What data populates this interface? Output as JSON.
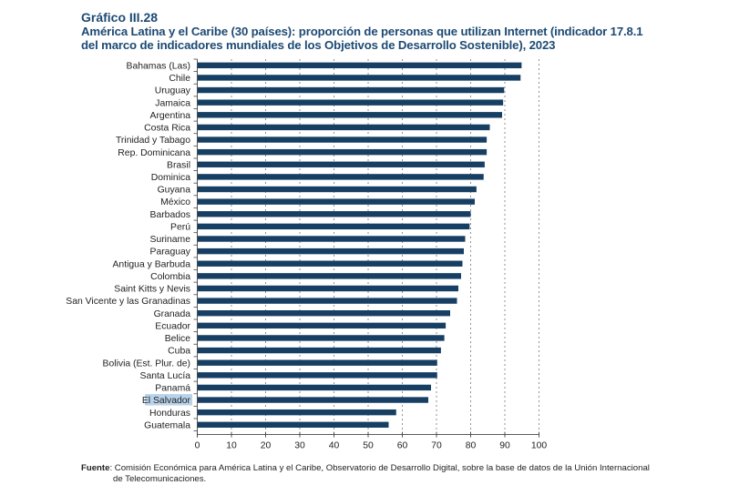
{
  "header": {
    "figure_number": "Gráfico III.28",
    "title_line1": "América Latina y el Caribe (30 países): proporción de personas que utilizan Internet (indicador 17.8.1",
    "title_line2": "del marco de indicadores mundiales de los Objetivos de Desarrollo Sostenible), 2023"
  },
  "footer": {
    "source_label": "Fuente",
    "source_sep": ":",
    "source_text_line1": "Comisión Económica para América Latina y el Caribe, Observatorio de Desarrollo Digital, sobre la base de datos de la Unión Internacional",
    "source_text_line2": "de Telecomunicaciones."
  },
  "colors": {
    "bar": "#173f63",
    "title": "#1c4a74",
    "highlight": "#b9d3ea",
    "grid": "#777777"
  },
  "chart_data": {
    "type": "bar",
    "orientation": "horizontal",
    "title": "América Latina y el Caribe (30 países): proporción de personas que utilizan Internet (indicador 17.8.1 del marco de indicadores mundiales de los Objetivos de Desarrollo Sostenible), 2023",
    "xlabel": "",
    "ylabel": "",
    "xlim": [
      0,
      100
    ],
    "xticks": [
      0,
      10,
      20,
      30,
      40,
      50,
      60,
      70,
      80,
      90,
      100
    ],
    "grid": "vertical dashed",
    "highlighted_category": "El Salvador",
    "categories": [
      "Bahamas (Las)",
      "Chile",
      "Uruguay",
      "Jamaica",
      "Argentina",
      "Costa Rica",
      "Trinidad y Tabago",
      "Rep. Dominicana",
      "Brasil",
      "Dominica",
      "Guyana",
      "México",
      "Barbados",
      "Perú",
      "Suriname",
      "Paraguay",
      "Antigua y Barbuda",
      "Colombia",
      "Saint Kitts y Nevis",
      "San Vicente y las Granadinas",
      "Granada",
      "Ecuador",
      "Belice",
      "Cuba",
      "Bolivia (Est. Plur. de)",
      "Santa Lucía",
      "Panamá",
      "El Salvador",
      "Honduras",
      "Guatemala"
    ],
    "values": [
      94.9,
      94.6,
      89.8,
      89.5,
      89.2,
      85.6,
      84.7,
      84.7,
      84.1,
      83.8,
      81.7,
      81.2,
      80.0,
      79.7,
      78.4,
      78.0,
      77.6,
      77.2,
      76.4,
      76.0,
      74.0,
      72.7,
      72.3,
      71.3,
      70.2,
      70.2,
      68.4,
      67.6,
      58.2,
      56.0
    ]
  }
}
